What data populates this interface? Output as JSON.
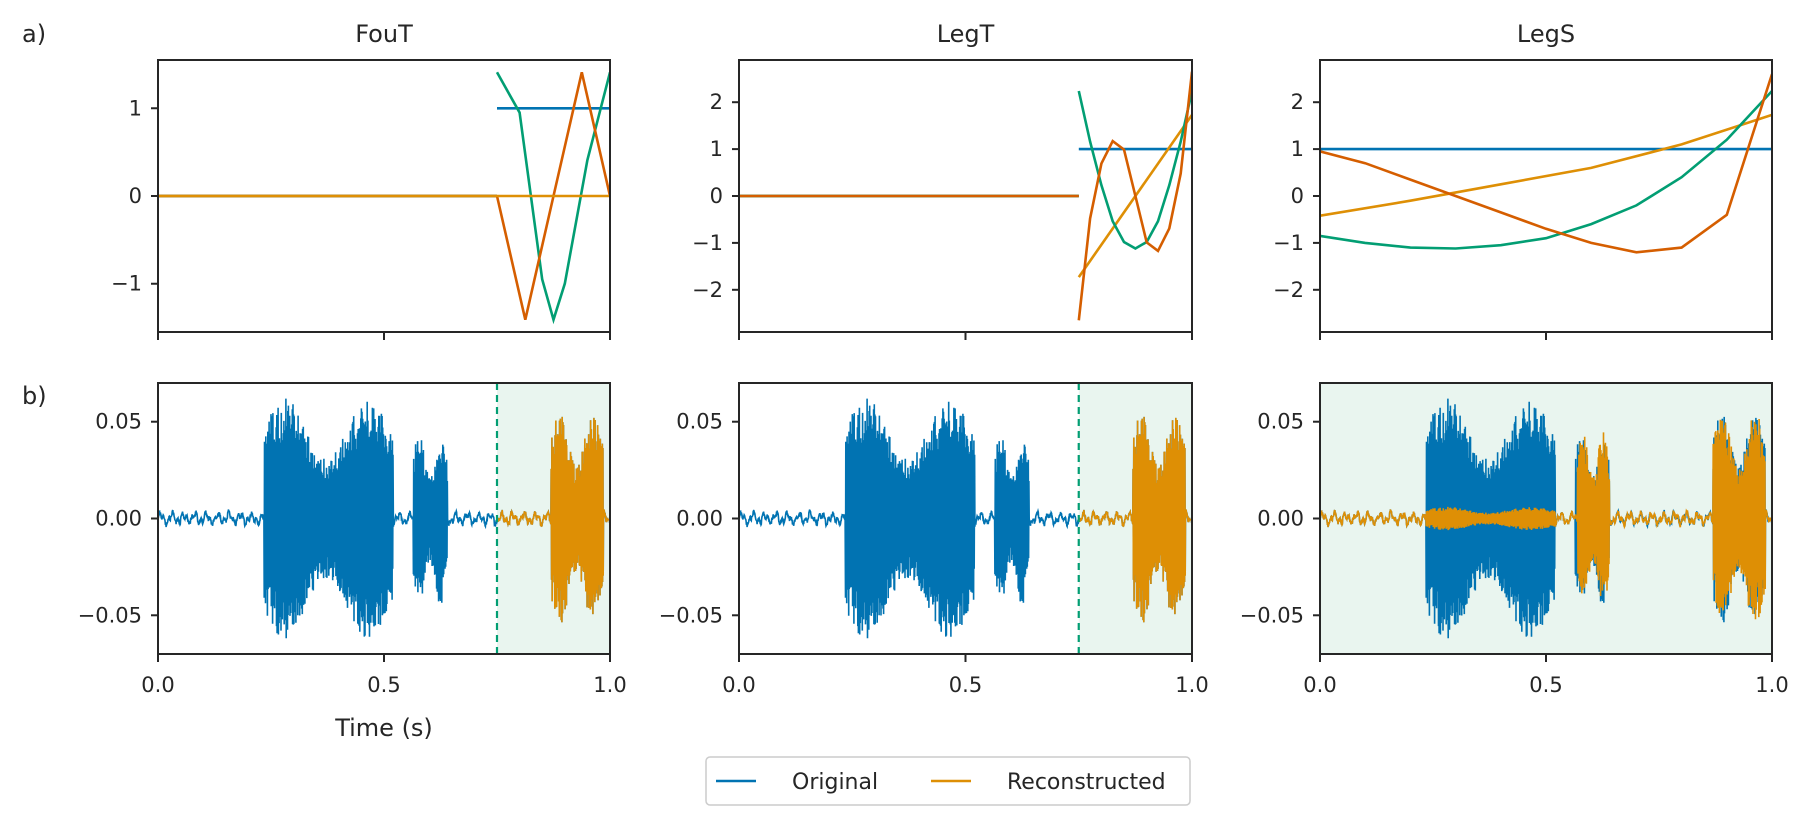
{
  "colors": {
    "blue": "#0173b2",
    "orange": "#de8f05",
    "green": "#029e73",
    "vermilion": "#d55e00",
    "shade": "#e9f5ef",
    "axis": "#262626"
  },
  "labels": {
    "row_a": "a)",
    "row_b": "b)",
    "xlabel": "Time (s)"
  },
  "legend": {
    "items": [
      "Original",
      "Reconstructed"
    ],
    "placement": "bottom-center"
  },
  "chart_data": [
    {
      "type": "line",
      "title": "FouT",
      "ylim": [
        -1.55,
        1.55
      ],
      "yticks": [
        -1,
        0,
        1
      ],
      "ytick_labels": [
        "−1",
        "0",
        "1"
      ],
      "x_range": [
        0,
        1
      ],
      "window_start": 0.75,
      "series": [
        {
          "color": "blue",
          "segments": [
            {
              "x": [
                0,
                0.75
              ],
              "y": [
                0,
                0
              ]
            },
            {
              "x": [
                0.75,
                1
              ],
              "y": [
                1,
                1
              ]
            }
          ]
        },
        {
          "color": "green",
          "segments": [
            {
              "x": [
                0,
                0.75
              ],
              "y": [
                0,
                0
              ]
            },
            {
              "x": [
                0.75,
                0.8,
                0.85,
                0.875,
                0.9,
                0.95,
                1
              ],
              "y": [
                1.41,
                0.95,
                -0.95,
                -1.41,
                -1.0,
                0.41,
                1.41
              ]
            }
          ]
        },
        {
          "color": "vermilion",
          "segments": [
            {
              "x": [
                0,
                0.75
              ],
              "y": [
                0,
                0
              ]
            },
            {
              "x": [
                0.75,
                0.8125,
                0.875,
                0.9375,
                1
              ],
              "y": [
                0,
                -1.41,
                0,
                1.41,
                0
              ]
            }
          ]
        },
        {
          "color": "orange",
          "segments": [
            {
              "x": [
                0,
                0.75
              ],
              "y": [
                0,
                0
              ]
            },
            {
              "x": [
                0.75,
                1
              ],
              "y": [
                0,
                0
              ]
            }
          ]
        }
      ]
    },
    {
      "type": "line",
      "title": "LegT",
      "ylim": [
        -2.9,
        2.9
      ],
      "yticks": [
        -2,
        -1,
        0,
        1,
        2
      ],
      "ytick_labels": [
        "−2",
        "−1",
        "0",
        "1",
        "2"
      ],
      "x_range": [
        0,
        1
      ],
      "window_start": 0.75,
      "series": [
        {
          "color": "blue",
          "segments": [
            {
              "x": [
                0,
                0.75
              ],
              "y": [
                0,
                0
              ]
            },
            {
              "x": [
                0.75,
                1
              ],
              "y": [
                1,
                1
              ]
            }
          ]
        },
        {
          "color": "orange",
          "segments": [
            {
              "x": [
                0,
                0.75
              ],
              "y": [
                0,
                0
              ]
            },
            {
              "x": [
                0.75,
                1
              ],
              "y": [
                -1.73,
                1.73
              ]
            }
          ]
        },
        {
          "color": "green",
          "segments": [
            {
              "x": [
                0,
                0.75
              ],
              "y": [
                0,
                0
              ]
            },
            {
              "x": [
                0.75,
                0.775,
                0.8,
                0.825,
                0.85,
                0.875,
                0.9,
                0.925,
                0.95,
                0.975,
                1
              ],
              "y": [
                2.24,
                1.16,
                0.23,
                -0.54,
                -0.98,
                -1.12,
                -0.98,
                -0.54,
                0.23,
                1.16,
                2.24
              ]
            }
          ]
        },
        {
          "color": "vermilion",
          "segments": [
            {
              "x": [
                0,
                0.75
              ],
              "y": [
                0,
                0
              ]
            },
            {
              "x": [
                0.75,
                0.775,
                0.8,
                0.825,
                0.85,
                0.875,
                0.9,
                0.925,
                0.95,
                0.975,
                1
              ],
              "y": [
                -2.65,
                -0.48,
                0.69,
                1.17,
                0.99,
                0.0,
                -0.99,
                -1.17,
                -0.69,
                0.48,
                2.65
              ]
            }
          ]
        }
      ]
    },
    {
      "type": "line",
      "title": "LegS",
      "ylim": [
        -2.9,
        2.9
      ],
      "yticks": [
        -2,
        -1,
        0,
        1,
        2
      ],
      "ytick_labels": [
        "−2",
        "−1",
        "0",
        "1",
        "2"
      ],
      "x_range": [
        0,
        1
      ],
      "series": [
        {
          "color": "blue",
          "segments": [
            {
              "x": [
                0,
                1
              ],
              "y": [
                1,
                1
              ]
            }
          ]
        },
        {
          "color": "orange",
          "segments": [
            {
              "x": [
                0,
                0.2,
                0.4,
                0.6,
                0.8,
                1
              ],
              "y": [
                -0.42,
                -0.1,
                0.25,
                0.6,
                1.1,
                1.73
              ]
            }
          ]
        },
        {
          "color": "green",
          "segments": [
            {
              "x": [
                0,
                0.1,
                0.2,
                0.3,
                0.4,
                0.5,
                0.6,
                0.7,
                0.8,
                0.9,
                1
              ],
              "y": [
                -0.85,
                -1.0,
                -1.1,
                -1.12,
                -1.05,
                -0.9,
                -0.6,
                -0.2,
                0.4,
                1.2,
                2.24
              ]
            }
          ]
        },
        {
          "color": "vermilion",
          "segments": [
            {
              "x": [
                0,
                0.1,
                0.2,
                0.3,
                0.4,
                0.5,
                0.6,
                0.7,
                0.8,
                0.9,
                1
              ],
              "y": [
                0.95,
                0.7,
                0.35,
                0.0,
                -0.35,
                -0.7,
                -1.0,
                -1.2,
                -1.1,
                -0.4,
                2.6
              ]
            }
          ]
        }
      ]
    },
    {
      "type": "line",
      "title": "",
      "ylim": [
        -0.07,
        0.07
      ],
      "yticks": [
        -0.05,
        0,
        0.05
      ],
      "ytick_labels": [
        "−0.05",
        "0.00",
        "0.05"
      ],
      "x_range": [
        0,
        1
      ],
      "xticks": [
        0,
        0.5,
        1
      ],
      "xtick_labels": [
        "0.0",
        "0.5",
        "1.0"
      ],
      "xlabel": "Time (s)",
      "window_start": 0.75,
      "shaded_region": [
        0.75,
        1
      ],
      "bursts": [
        {
          "start": 0.235,
          "end": 0.52,
          "amplitude": 0.062
        },
        {
          "start": 0.565,
          "end": 0.64,
          "amplitude": 0.045
        },
        {
          "start": 0.87,
          "end": 0.985,
          "amplitude": 0.055
        }
      ],
      "reconstructed_range": [
        0.75,
        1
      ]
    },
    {
      "type": "line",
      "title": "",
      "ylim": [
        -0.07,
        0.07
      ],
      "yticks": [
        -0.05,
        0,
        0.05
      ],
      "ytick_labels": [
        "−0.05",
        "0.00",
        "0.05"
      ],
      "x_range": [
        0,
        1
      ],
      "xticks": [
        0,
        0.5,
        1
      ],
      "xtick_labels": [
        "0.0",
        "0.5",
        "1.0"
      ],
      "window_start": 0.75,
      "shaded_region": [
        0.75,
        1
      ],
      "bursts": [
        {
          "start": 0.235,
          "end": 0.52,
          "amplitude": 0.062
        },
        {
          "start": 0.565,
          "end": 0.64,
          "amplitude": 0.045
        },
        {
          "start": 0.87,
          "end": 0.985,
          "amplitude": 0.055
        }
      ],
      "reconstructed_range": [
        0.75,
        1
      ]
    },
    {
      "type": "line",
      "title": "",
      "ylim": [
        -0.07,
        0.07
      ],
      "yticks": [
        -0.05,
        0,
        0.05
      ],
      "ytick_labels": [
        "−0.05",
        "0.00",
        "0.05"
      ],
      "x_range": [
        0,
        1
      ],
      "xticks": [
        0,
        0.5,
        1
      ],
      "xtick_labels": [
        "0.0",
        "0.5",
        "1.0"
      ],
      "shaded_region": [
        0,
        1
      ],
      "bursts": [
        {
          "start": 0.235,
          "end": 0.52,
          "amplitude": 0.062
        },
        {
          "start": 0.565,
          "end": 0.64,
          "amplitude": 0.045
        },
        {
          "start": 0.87,
          "end": 0.985,
          "amplitude": 0.055
        }
      ],
      "reconstructed_range": [
        0,
        1
      ],
      "reconstructed_partial_bursts": [
        {
          "start": 0.235,
          "end": 0.52,
          "amplitude": 0.006
        },
        {
          "start": 0.57,
          "end": 0.64,
          "amplitude": 0.045
        },
        {
          "start": 0.87,
          "end": 0.985,
          "amplitude": 0.055
        }
      ]
    }
  ]
}
